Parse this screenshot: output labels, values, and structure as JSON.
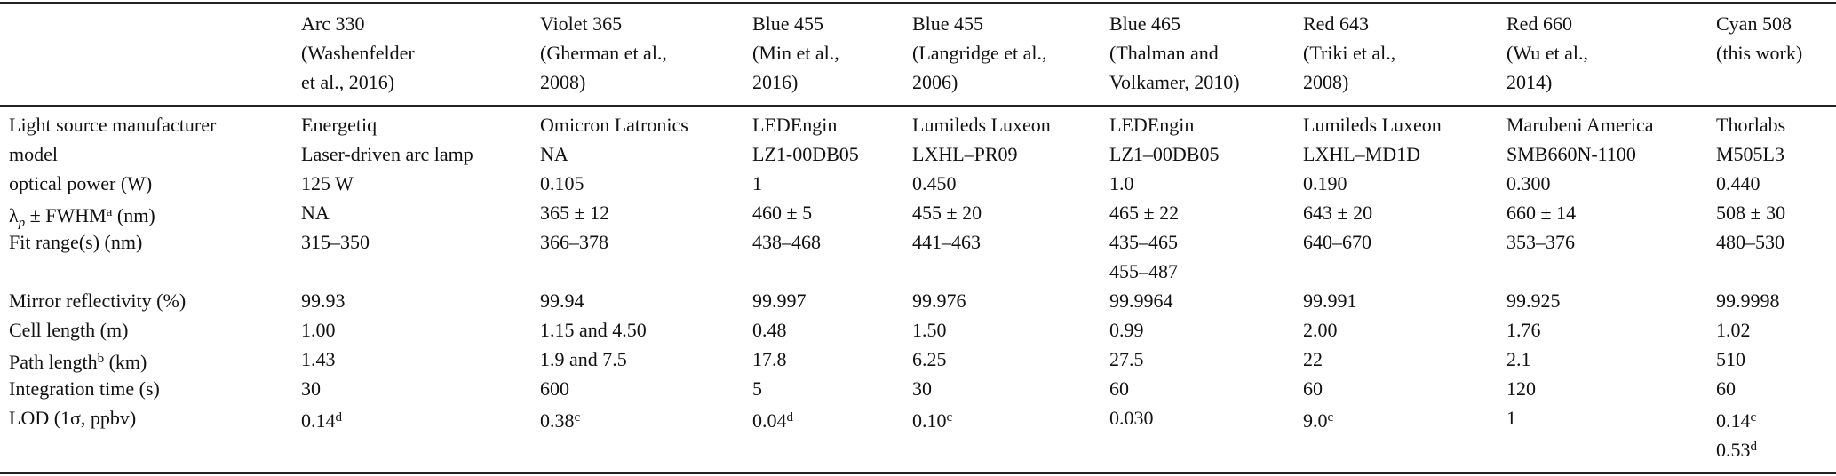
{
  "table": {
    "columns": [
      [
        "Arc 330",
        "(Washenfelder",
        "et al., 2016)"
      ],
      [
        "Violet 365",
        "(Gherman et al.,",
        "2008)"
      ],
      [
        "Blue 455",
        "(Min et al.,",
        "2016)"
      ],
      [
        "Blue 455",
        "(Langridge et al.,",
        "2006)"
      ],
      [
        "Blue 465",
        "(Thalman and",
        "Volkamer, 2010)"
      ],
      [
        "Red 643",
        "(Triki et al.,",
        "2008)"
      ],
      [
        "Red 660",
        "(Wu et al.,",
        "2014)"
      ],
      [
        "Cyan 508",
        "(this work)"
      ]
    ],
    "rows": [
      {
        "label": [
          "Light source manufacturer"
        ],
        "cells": [
          [
            "Energetiq"
          ],
          [
            "Omicron Latronics"
          ],
          [
            "LEDEngin"
          ],
          [
            "Lumileds Luxeon"
          ],
          [
            "LEDEngin"
          ],
          [
            "Lumileds Luxeon"
          ],
          [
            "Marubeni America"
          ],
          [
            "Thorlabs"
          ]
        ]
      },
      {
        "label": [
          "model"
        ],
        "cells": [
          [
            "Laser-driven arc lamp"
          ],
          [
            "NA"
          ],
          [
            "LZ1-00DB05"
          ],
          [
            "LXHL–PR09"
          ],
          [
            "LZ1–00DB05"
          ],
          [
            "LXHL–MD1D"
          ],
          [
            "SMB660N-1100"
          ],
          [
            "M505L3"
          ]
        ]
      },
      {
        "label": [
          "optical power (W)"
        ],
        "cells": [
          [
            "125 W"
          ],
          [
            "0.105"
          ],
          [
            "1"
          ],
          [
            "0.450"
          ],
          [
            "1.0"
          ],
          [
            "0.190"
          ],
          [
            "0.300"
          ],
          [
            "0.440"
          ]
        ]
      },
      {
        "label": [
          [
            "λ",
            {
              "text": "p",
              "pos": "sub"
            },
            " ± FWHM",
            {
              "text": "a",
              "pos": "sup"
            },
            " (nm)"
          ]
        ],
        "cells": [
          [
            "NA"
          ],
          [
            "365 ± 12"
          ],
          [
            "460 ± 5"
          ],
          [
            "455 ± 20"
          ],
          [
            "465 ± 22"
          ],
          [
            "643 ± 20"
          ],
          [
            "660 ± 14"
          ],
          [
            "508 ± 30"
          ]
        ]
      },
      {
        "label": [
          "Fit range(s) (nm)"
        ],
        "cells": [
          [
            "315–350"
          ],
          [
            "366–378"
          ],
          [
            "438–468"
          ],
          [
            "441–463"
          ],
          [
            "435–465",
            "455–487"
          ],
          [
            "640–670"
          ],
          [
            "353–376"
          ],
          [
            "480–530"
          ]
        ]
      },
      {
        "label": [
          "Mirror reflectivity (%)"
        ],
        "cells": [
          [
            "99.93"
          ],
          [
            "99.94"
          ],
          [
            "99.997"
          ],
          [
            "99.976"
          ],
          [
            "99.9964"
          ],
          [
            "99.991"
          ],
          [
            "99.925"
          ],
          [
            "99.9998"
          ]
        ]
      },
      {
        "label": [
          "Cell length (m)"
        ],
        "cells": [
          [
            "1.00"
          ],
          [
            "1.15 and 4.50"
          ],
          [
            "0.48"
          ],
          [
            "1.50"
          ],
          [
            "0.99"
          ],
          [
            "2.00"
          ],
          [
            "1.76"
          ],
          [
            "1.02"
          ]
        ]
      },
      {
        "label": [
          [
            "Path length",
            {
              "text": "b",
              "pos": "sup"
            },
            " (km)"
          ]
        ],
        "cells": [
          [
            "1.43"
          ],
          [
            "1.9 and 7.5"
          ],
          [
            "17.8"
          ],
          [
            "6.25"
          ],
          [
            "27.5"
          ],
          [
            "22"
          ],
          [
            "2.1"
          ],
          [
            "510"
          ]
        ]
      },
      {
        "label": [
          "Integration time (s)"
        ],
        "cells": [
          [
            "30"
          ],
          [
            "600"
          ],
          [
            "5"
          ],
          [
            "30"
          ],
          [
            "60"
          ],
          [
            "60"
          ],
          [
            "120"
          ],
          [
            "60"
          ]
        ]
      },
      {
        "label": [
          "LOD (1σ, ppbv)"
        ],
        "cells": [
          [
            [
              "0.14",
              {
                "text": "d",
                "pos": "sup"
              }
            ]
          ],
          [
            [
              "0.38",
              {
                "text": "c",
                "pos": "sup"
              }
            ]
          ],
          [
            [
              "0.04",
              {
                "text": "d",
                "pos": "sup"
              }
            ]
          ],
          [
            [
              "0.10",
              {
                "text": "c",
                "pos": "sup"
              }
            ]
          ],
          [
            "0.030"
          ],
          [
            [
              "9.0",
              {
                "text": "c",
                "pos": "sup"
              }
            ]
          ],
          [
            "1"
          ],
          [
            [
              "0.14",
              {
                "text": "c",
                "pos": "sup"
              }
            ],
            [
              "0.53",
              {
                "text": "d",
                "pos": "sup"
              }
            ]
          ]
        ]
      }
    ]
  }
}
